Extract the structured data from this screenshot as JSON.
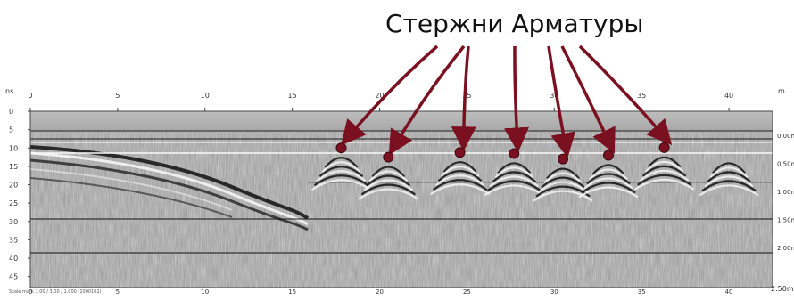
{
  "title": "Стержни Арматуры",
  "axes": {
    "top_unit_left": "ns",
    "top_unit_right": "m",
    "bottom_unit_right": "2.50m",
    "x_ticks": [
      "0",
      "5",
      "10",
      "15",
      "20",
      "25",
      "30",
      "35",
      "40"
    ],
    "y_ticks": [
      "0",
      "5",
      "10",
      "15",
      "20",
      "25",
      "30",
      "35",
      "40",
      "45"
    ],
    "depth_labels": [
      "0.00m",
      "0.50m",
      "1.00m",
      "1.50m",
      "2.00m"
    ]
  },
  "rebar_markers": {
    "color": "#7a1020",
    "x": [
      17.8,
      20.5,
      24.6,
      27.7,
      30.5,
      33.1,
      36.3
    ],
    "y_ns": [
      10.0,
      12.5,
      11.2,
      11.5,
      13.0,
      12.0,
      9.9
    ]
  },
  "footer_note": "Scale mark 1.00 / 3.00 / 1.000 (1000102)"
}
